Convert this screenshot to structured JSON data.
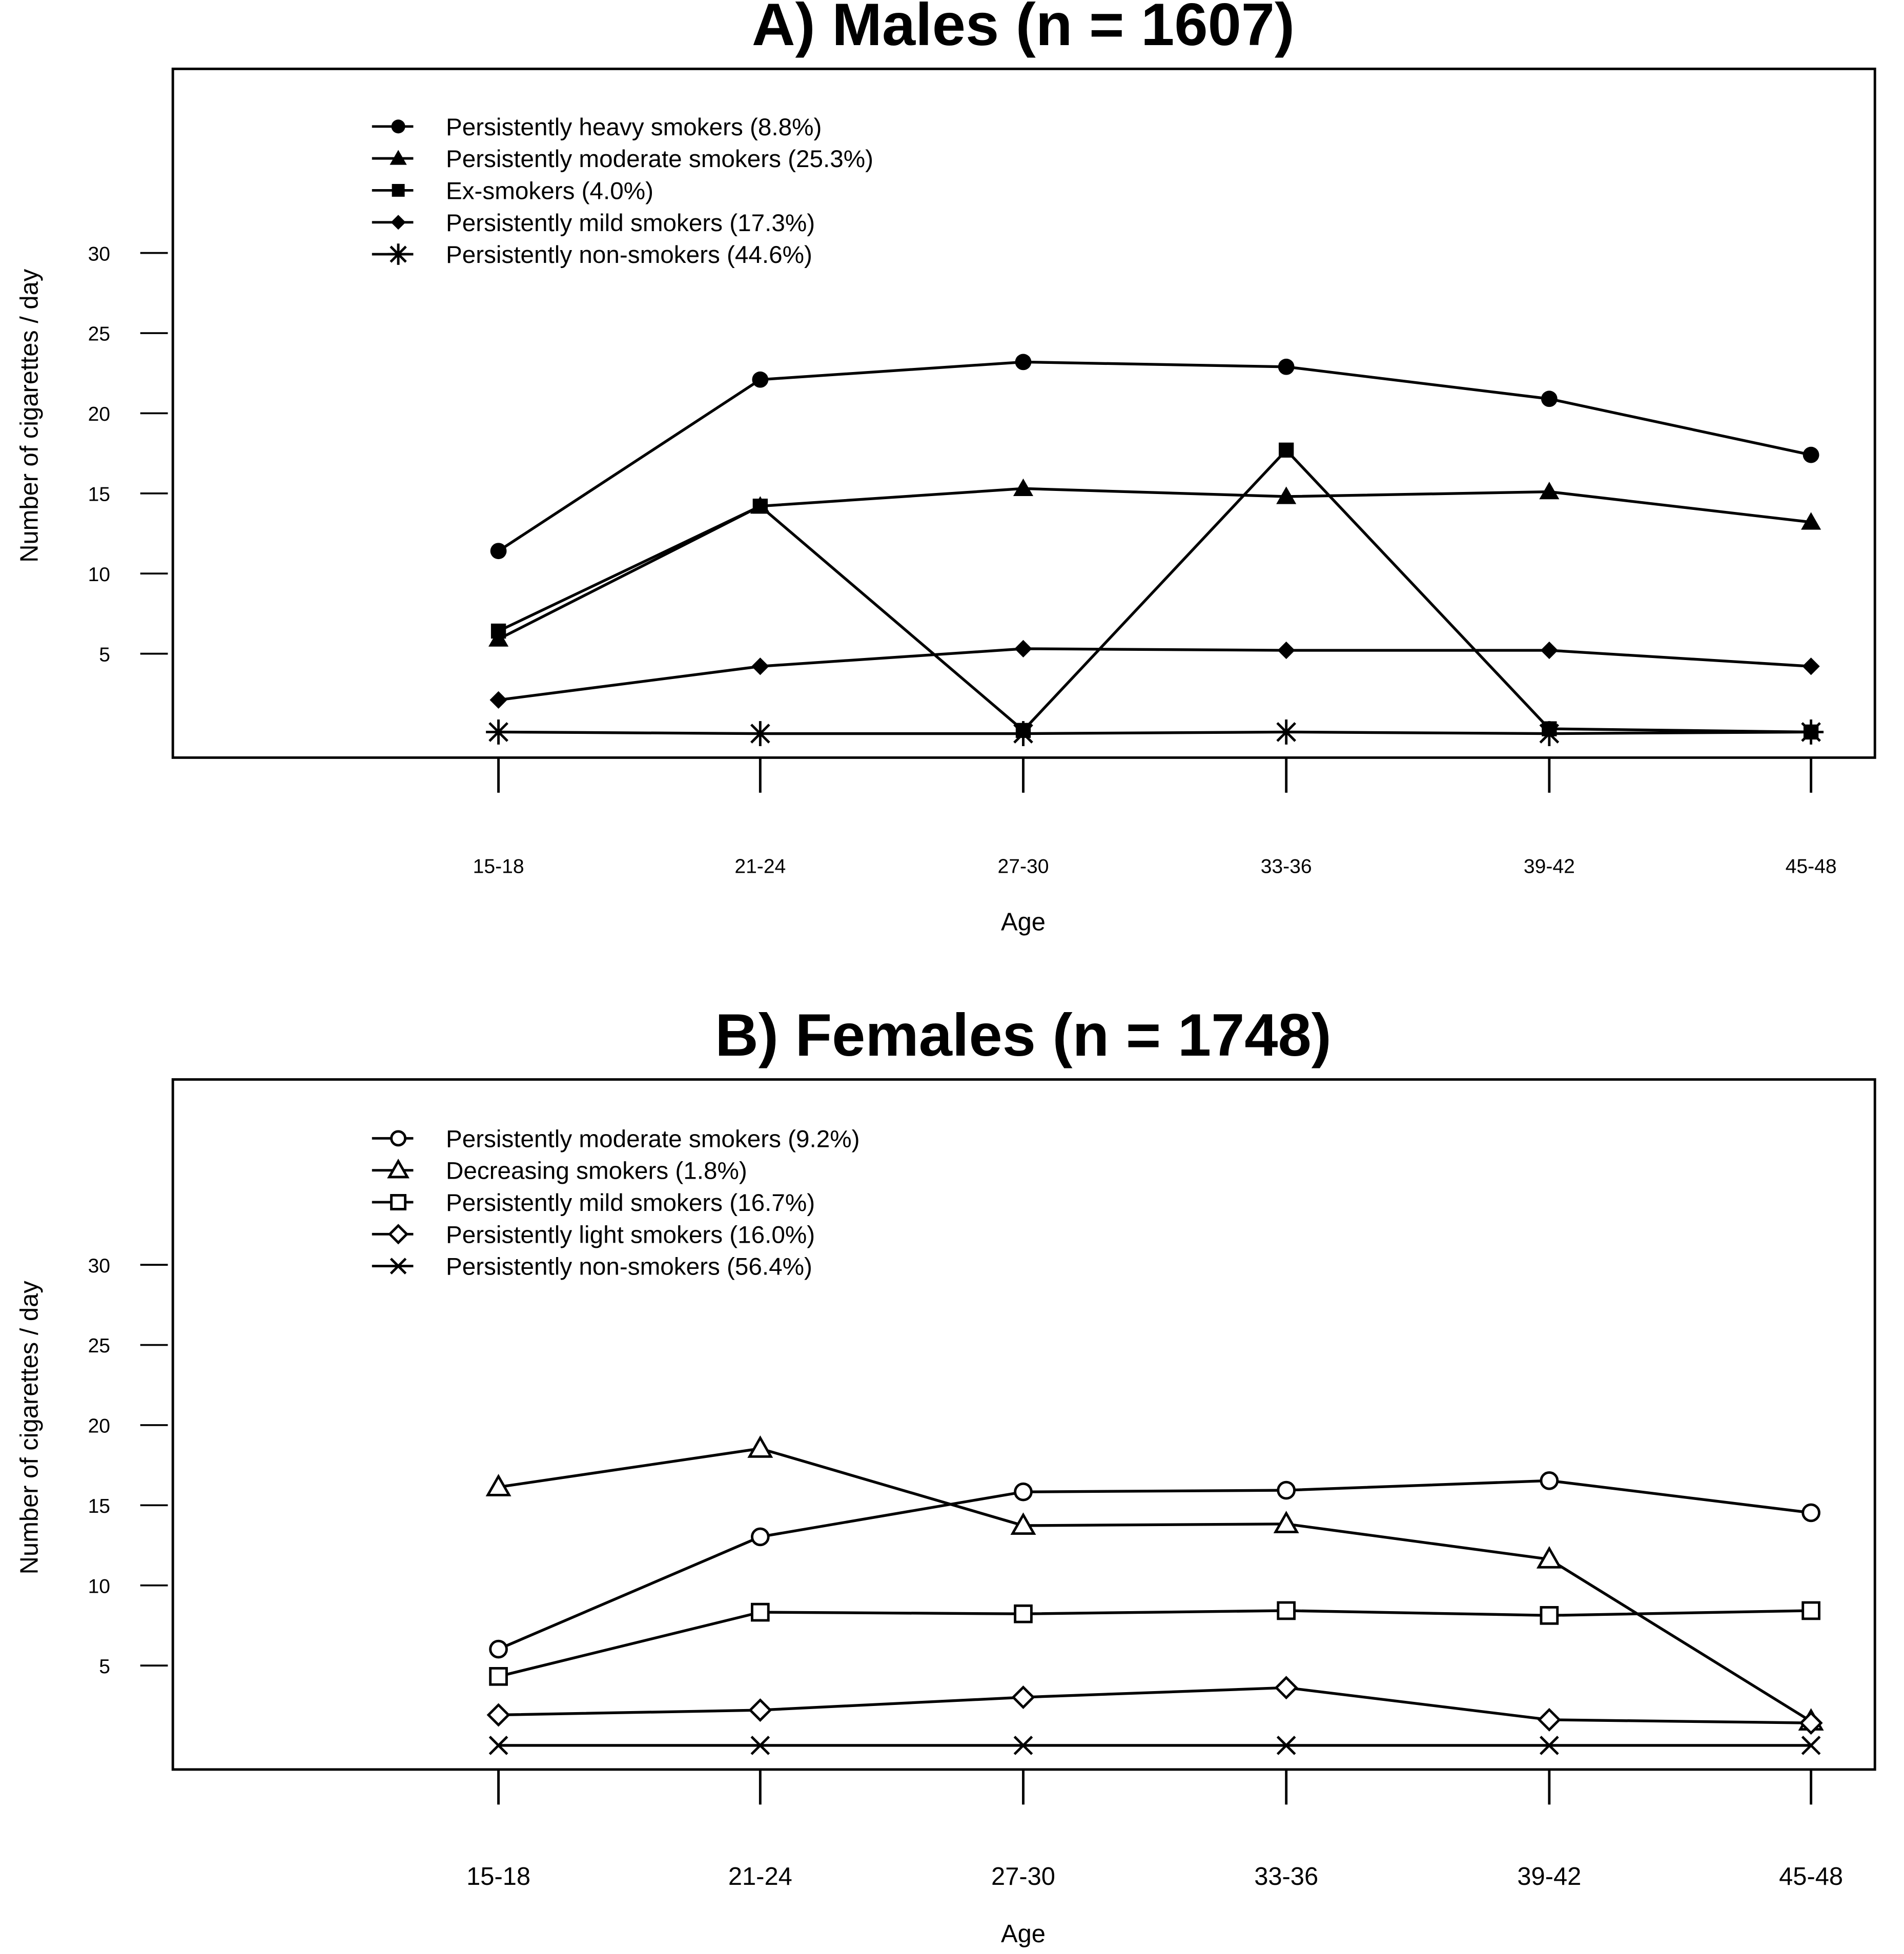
{
  "chart_data": [
    {
      "type": "line",
      "title": "A) Males (n = 1607)",
      "xlabel": "Age",
      "ylabel": "Number of cigarettes / day",
      "categories": [
        "15-18",
        "21-24",
        "27-30",
        "33-36",
        "39-42",
        "45-48"
      ],
      "yticks": [
        "5",
        "10",
        "15",
        "20",
        "25",
        "30"
      ],
      "ylim": [
        -1.5,
        41.5
      ],
      "grid": false,
      "legend_position": "top-left",
      "series": [
        {
          "name": "Persistently heavy smokers (8.8%)",
          "marker": "filled-circle",
          "values": [
            11.4,
            22.1,
            23.2,
            22.9,
            20.9,
            17.4
          ]
        },
        {
          "name": "Persistently moderate smokers (25.3%)",
          "marker": "filled-triangle",
          "values": [
            5.9,
            14.2,
            15.3,
            14.8,
            15.1,
            13.2
          ]
        },
        {
          "name": "Ex-smokers (4.0%)",
          "marker": "filled-square",
          "values": [
            6.4,
            14.2,
            0.2,
            17.7,
            0.3,
            0.1
          ]
        },
        {
          "name": "Persistently mild smokers (17.3%)",
          "marker": "filled-diamond",
          "values": [
            2.1,
            4.2,
            5.3,
            5.2,
            5.2,
            4.2
          ]
        },
        {
          "name": "Persistently non-smokers (44.6%)",
          "marker": "asterisk",
          "values": [
            0.1,
            0.0,
            0.0,
            0.1,
            0.0,
            0.1
          ]
        }
      ]
    },
    {
      "type": "line",
      "title": "B) Females (n = 1748)",
      "xlabel": "Age",
      "ylabel": "Number of cigarettes / day",
      "categories": [
        "15-18",
        "21-24",
        "27-30",
        "33-36",
        "39-42",
        "45-48"
      ],
      "yticks": [
        "5",
        "10",
        "15",
        "20",
        "25",
        "30"
      ],
      "ylim": [
        -1.5,
        41.5
      ],
      "grid": false,
      "legend_position": "top-left",
      "series": [
        {
          "name": "Persistently moderate smokers (9.2%)",
          "marker": "open-circle",
          "values": [
            6.0,
            13.0,
            15.8,
            15.9,
            16.5,
            14.5
          ]
        },
        {
          "name": "Decreasing smokers (1.8%)",
          "marker": "open-triangle",
          "values": [
            16.1,
            18.5,
            13.7,
            13.8,
            11.6,
            1.5
          ]
        },
        {
          "name": "Persistently mild smokers (16.7%)",
          "marker": "open-square",
          "values": [
            4.3,
            8.3,
            8.2,
            8.4,
            8.1,
            8.4
          ]
        },
        {
          "name": "Persistently light smokers (16.0%)",
          "marker": "open-diamond",
          "values": [
            1.9,
            2.2,
            3.0,
            3.6,
            1.6,
            1.4
          ]
        },
        {
          "name": "Persistently non-smokers (56.4%)",
          "marker": "x",
          "values": [
            0.0,
            0.0,
            0.0,
            0.0,
            0.0,
            0.0
          ]
        }
      ]
    }
  ]
}
